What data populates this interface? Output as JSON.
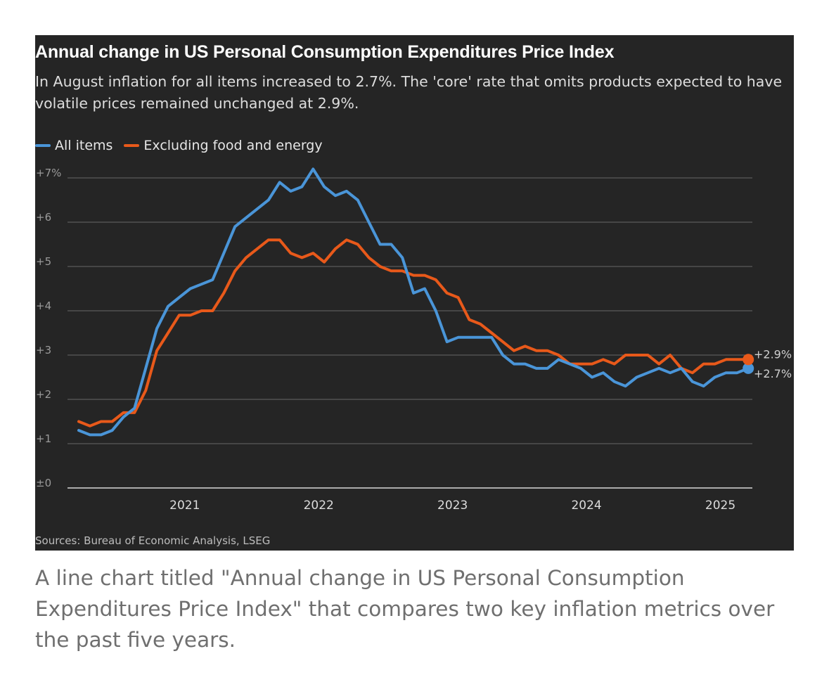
{
  "chart_data": {
    "type": "line",
    "title": "Annual change in US Personal Consumption Expenditures Price Index",
    "subtitle": "In August inflation for all items increased to 2.7%. The 'core' rate that omits products expected to have volatile prices remained unchanged at 2.9%.",
    "legend_position": "top-left",
    "x_start": "2020-09",
    "x_end": "2025-08",
    "x_tick_labels": [
      "2021",
      "2022",
      "2023",
      "2024",
      "2025"
    ],
    "y_tick_labels": [
      "±0",
      "+1",
      "+2",
      "+3",
      "+4",
      "+5",
      "+6",
      "+7%"
    ],
    "ylim": [
      0,
      7
    ],
    "grid": true,
    "series": [
      {
        "name": "All items",
        "color": "#4a95d8",
        "values": [
          1.3,
          1.2,
          1.2,
          1.3,
          1.6,
          1.8,
          2.7,
          3.6,
          4.1,
          4.3,
          4.5,
          4.6,
          4.7,
          5.3,
          5.9,
          6.1,
          6.3,
          6.5,
          6.9,
          6.7,
          6.8,
          7.2,
          6.8,
          6.6,
          6.7,
          6.5,
          6.0,
          5.5,
          5.5,
          5.2,
          4.4,
          4.5,
          4.0,
          3.3,
          3.4,
          3.4,
          3.4,
          3.4,
          3.0,
          2.8,
          2.8,
          2.7,
          2.7,
          2.9,
          2.8,
          2.7,
          2.5,
          2.6,
          2.4,
          2.3,
          2.5,
          2.6,
          2.7,
          2.6,
          2.7,
          2.4,
          2.3,
          2.5,
          2.6,
          2.6,
          2.7
        ],
        "end_label": "+2.7%"
      },
      {
        "name": "Excluding food and energy",
        "color": "#e8591a",
        "values": [
          1.5,
          1.4,
          1.5,
          1.5,
          1.7,
          1.7,
          2.2,
          3.1,
          3.5,
          3.9,
          3.9,
          4.0,
          4.0,
          4.4,
          4.9,
          5.2,
          5.4,
          5.6,
          5.6,
          5.3,
          5.2,
          5.3,
          5.1,
          5.4,
          5.6,
          5.5,
          5.2,
          5.0,
          4.9,
          4.9,
          4.8,
          4.8,
          4.7,
          4.4,
          4.3,
          3.8,
          3.7,
          3.5,
          3.3,
          3.1,
          3.2,
          3.1,
          3.1,
          3.0,
          2.8,
          2.8,
          2.8,
          2.9,
          2.8,
          3.0,
          3.0,
          3.0,
          2.8,
          3.0,
          2.7,
          2.6,
          2.8,
          2.8,
          2.9,
          2.9,
          2.9
        ],
        "end_label": "+2.9%"
      }
    ],
    "source": "Sources: Bureau of Economic Analysis, LSEG"
  },
  "caption": "A line chart titled \"Annual change in US Personal Consumption Expenditures Price Index\" that compares two key inflation metrics over the past five years."
}
